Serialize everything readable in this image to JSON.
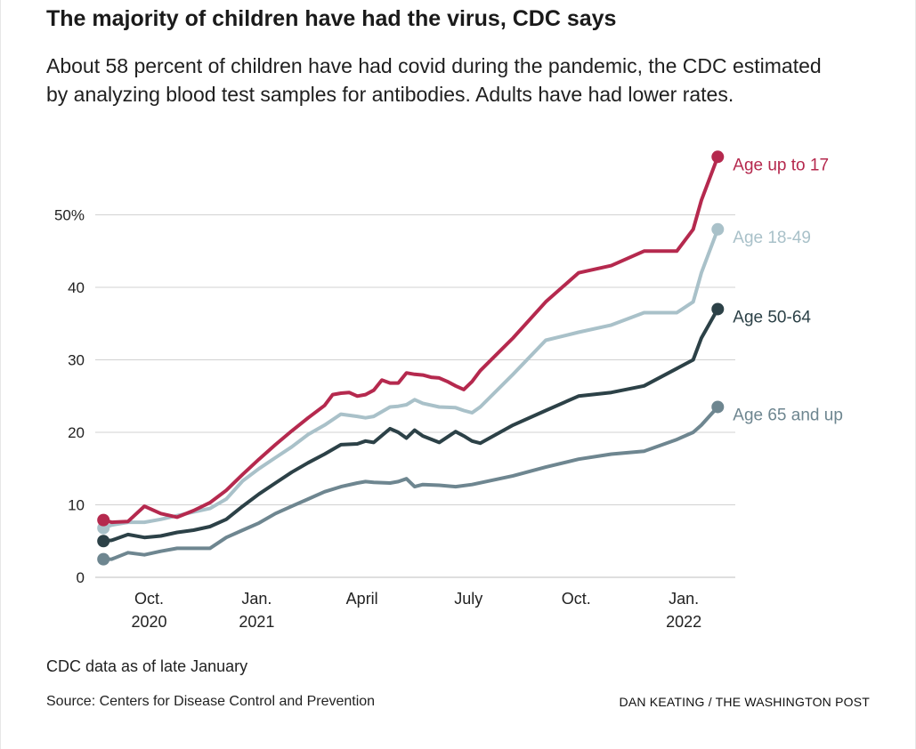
{
  "header": {
    "title": "The majority of children have had the virus, CDC says",
    "subtitle": "About 58 percent of children have had covid during the pandemic, the CDC estimated by analyzing blood test samples for antibodies. Adults have had lower rates."
  },
  "footer": {
    "note": "CDC data as of late January",
    "source": "Source: Centers for Disease Control and Prevention",
    "credit": "DAN KEATING / THE WASHINGTON POST"
  },
  "chart_data": {
    "type": "line",
    "title": "The majority of children have had the virus, CDC says",
    "subtitle": "About 58 percent of children have had covid during the pandemic, the CDC estimated by analyzing blood test samples for antibodies. Adults have had lower rates.",
    "xlabel": "",
    "ylabel": "",
    "ylim": [
      0,
      60
    ],
    "xlim": [
      "2020-08-16",
      "2022-02-14"
    ],
    "y_ticks": [
      {
        "value": 0,
        "label": "0"
      },
      {
        "value": 10,
        "label": "10"
      },
      {
        "value": 20,
        "label": "20"
      },
      {
        "value": 30,
        "label": "30"
      },
      {
        "value": 40,
        "label": "40"
      },
      {
        "value": 50,
        "label": "50%"
      }
    ],
    "x_ticks": [
      {
        "date": "2020-10-01",
        "label": "Oct.",
        "year": "2020"
      },
      {
        "date": "2021-01-01",
        "label": "Jan.",
        "year": "2021"
      },
      {
        "date": "2021-04-01",
        "label": "April",
        "year": ""
      },
      {
        "date": "2021-07-01",
        "label": "July",
        "year": ""
      },
      {
        "date": "2021-10-01",
        "label": "Oct.",
        "year": ""
      },
      {
        "date": "2022-01-01",
        "label": "Jan.",
        "year": "2022"
      }
    ],
    "grid": true,
    "legend": "direct labels at line ends",
    "series": [
      {
        "name": "Age up to 17",
        "color": "#b5294e",
        "endpoint_markers": true,
        "x": [
          "2020-08-23",
          "2020-08-30",
          "2020-09-13",
          "2020-09-27",
          "2020-10-11",
          "2020-10-25",
          "2020-11-08",
          "2020-11-22",
          "2020-12-06",
          "2020-12-20",
          "2021-01-03",
          "2021-01-17",
          "2021-01-31",
          "2021-02-14",
          "2021-02-28",
          "2021-03-07",
          "2021-03-14",
          "2021-03-21",
          "2021-03-28",
          "2021-04-04",
          "2021-04-11",
          "2021-04-18",
          "2021-04-25",
          "2021-05-02",
          "2021-05-09",
          "2021-05-16",
          "2021-05-23",
          "2021-05-30",
          "2021-06-06",
          "2021-06-13",
          "2021-06-20",
          "2021-06-27",
          "2021-07-04",
          "2021-07-11",
          "2021-08-08",
          "2021-09-05",
          "2021-10-03",
          "2021-10-31",
          "2021-11-28",
          "2021-12-26",
          "2022-01-09",
          "2022-01-16",
          "2022-01-30"
        ],
        "y": [
          7.9,
          7.6,
          7.7,
          9.8,
          8.8,
          8.3,
          9.2,
          10.3,
          12.0,
          14.2,
          16.3,
          18.3,
          20.2,
          22.0,
          23.7,
          25.2,
          25.4,
          25.5,
          25.0,
          25.2,
          25.8,
          27.2,
          26.8,
          26.8,
          28.2,
          28.0,
          27.9,
          27.6,
          27.5,
          27.0,
          26.4,
          25.9,
          27.0,
          28.5,
          33.0,
          38.0,
          42.0,
          43.0,
          45.0,
          45.0,
          48.0,
          52.0,
          58.0
        ]
      },
      {
        "name": "Age 18-49",
        "color": "#a9c1c9",
        "endpoint_markers": true,
        "x": [
          "2020-08-23",
          "2020-08-30",
          "2020-09-13",
          "2020-09-27",
          "2020-10-11",
          "2020-10-25",
          "2020-11-08",
          "2020-11-22",
          "2020-12-06",
          "2020-12-20",
          "2021-01-03",
          "2021-01-17",
          "2021-01-31",
          "2021-02-14",
          "2021-02-28",
          "2021-03-14",
          "2021-03-28",
          "2021-04-04",
          "2021-04-11",
          "2021-04-25",
          "2021-05-02",
          "2021-05-09",
          "2021-05-16",
          "2021-05-23",
          "2021-06-06",
          "2021-06-20",
          "2021-06-27",
          "2021-07-04",
          "2021-07-11",
          "2021-08-08",
          "2021-09-05",
          "2021-10-03",
          "2021-10-31",
          "2021-11-28",
          "2021-12-26",
          "2022-01-09",
          "2022-01-16",
          "2022-01-30"
        ],
        "y": [
          6.8,
          7.2,
          7.6,
          7.6,
          8.0,
          8.5,
          9.0,
          9.5,
          10.8,
          13.3,
          15.0,
          16.5,
          18.0,
          19.7,
          21.0,
          22.5,
          22.2,
          22.0,
          22.2,
          23.5,
          23.6,
          23.8,
          24.5,
          24.0,
          23.5,
          23.4,
          23.0,
          22.7,
          23.5,
          28.0,
          32.7,
          33.8,
          34.8,
          36.5,
          36.5,
          38.0,
          42.0,
          48.0
        ]
      },
      {
        "name": "Age 50-64",
        "color": "#2c4147",
        "endpoint_markers": true,
        "x": [
          "2020-08-23",
          "2020-08-30",
          "2020-09-13",
          "2020-09-27",
          "2020-10-11",
          "2020-10-25",
          "2020-11-08",
          "2020-11-22",
          "2020-12-06",
          "2020-12-20",
          "2021-01-03",
          "2021-01-17",
          "2021-01-31",
          "2021-02-14",
          "2021-02-28",
          "2021-03-14",
          "2021-03-28",
          "2021-04-04",
          "2021-04-11",
          "2021-04-25",
          "2021-05-02",
          "2021-05-09",
          "2021-05-16",
          "2021-05-23",
          "2021-06-06",
          "2021-06-20",
          "2021-06-27",
          "2021-07-04",
          "2021-07-11",
          "2021-08-08",
          "2021-09-05",
          "2021-10-03",
          "2021-10-31",
          "2021-11-28",
          "2021-12-26",
          "2022-01-09",
          "2022-01-16",
          "2022-01-30"
        ],
        "y": [
          5.0,
          5.1,
          5.9,
          5.5,
          5.7,
          6.2,
          6.5,
          7.0,
          8.0,
          9.8,
          11.5,
          13.0,
          14.5,
          15.8,
          17.0,
          18.3,
          18.4,
          18.8,
          18.6,
          20.5,
          20.0,
          19.2,
          20.3,
          19.5,
          18.6,
          20.1,
          19.5,
          18.8,
          18.5,
          21.0,
          23.0,
          25.0,
          25.5,
          26.4,
          28.8,
          30.0,
          33.0,
          37.0
        ]
      },
      {
        "name": "Age 65 and up",
        "color": "#6e8690",
        "endpoint_markers": true,
        "x": [
          "2020-08-23",
          "2020-08-30",
          "2020-09-13",
          "2020-09-27",
          "2020-10-11",
          "2020-10-25",
          "2020-11-08",
          "2020-11-22",
          "2020-12-06",
          "2020-12-20",
          "2021-01-03",
          "2021-01-17",
          "2021-01-31",
          "2021-02-14",
          "2021-02-28",
          "2021-03-14",
          "2021-03-28",
          "2021-04-04",
          "2021-04-11",
          "2021-04-25",
          "2021-05-02",
          "2021-05-09",
          "2021-05-16",
          "2021-05-23",
          "2021-06-06",
          "2021-06-20",
          "2021-07-04",
          "2021-08-08",
          "2021-09-05",
          "2021-10-03",
          "2021-10-31",
          "2021-11-28",
          "2021-12-26",
          "2022-01-09",
          "2022-01-16",
          "2022-01-30"
        ],
        "y": [
          2.5,
          2.5,
          3.4,
          3.1,
          3.6,
          4.0,
          4.0,
          4.0,
          5.5,
          6.5,
          7.5,
          8.8,
          9.8,
          10.8,
          11.8,
          12.5,
          13.0,
          13.2,
          13.1,
          13.0,
          13.2,
          13.6,
          12.5,
          12.8,
          12.7,
          12.5,
          12.8,
          14.0,
          15.2,
          16.3,
          17.0,
          17.4,
          19.0,
          20.0,
          21.0,
          23.5
        ]
      }
    ]
  }
}
